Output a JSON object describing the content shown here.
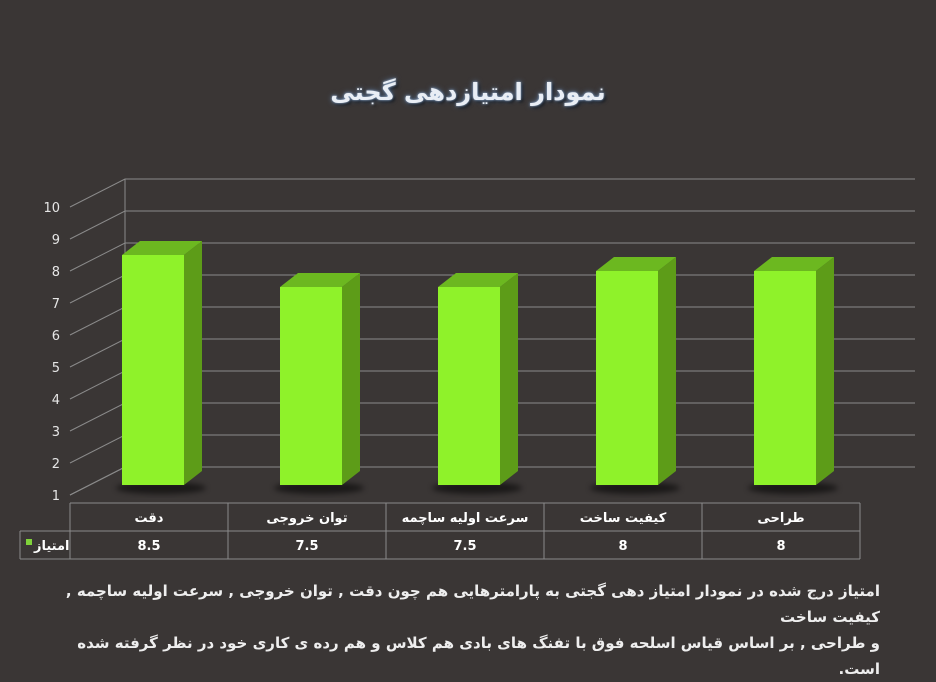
{
  "chart_data": {
    "type": "bar",
    "title": "نمودار امتیازدهی گجتی",
    "categories": [
      "دقت",
      "توان خروجی",
      "سرعت اولیه ساچمه",
      "کیفیت ساخت",
      "طراحی"
    ],
    "series": [
      {
        "name": "امتیاز",
        "values": [
          8.5,
          7.5,
          7.5,
          8,
          8
        ]
      }
    ],
    "value_labels": [
      "8.5",
      "7.5",
      "7.5",
      "8",
      "8"
    ],
    "y_ticks": [
      "1",
      "2",
      "3",
      "4",
      "5",
      "6",
      "7",
      "8",
      "9",
      "10"
    ],
    "ylim": [
      1,
      10
    ],
    "grid": true,
    "legend": "data-table",
    "colors": {
      "bar_front": "#8ff22a",
      "bar_side": "#5d9c18",
      "bar_top": "#6cb820",
      "legend_key": "#7fd23a"
    }
  },
  "footer": {
    "line1": "امتیاز درج شده در نمودار امتیاز دهی گجتی  به پارامترهایی هم چون دقت , توان خروجی , سرعت اولیه ساچمه , کیفیت ساخت",
    "line2": "و طراحی , بر اساس قیاس اسلحه فوق با تفنگ های بادی هم کلاس و هم رده ی کاری خود در نظر گرفته شده است."
  }
}
